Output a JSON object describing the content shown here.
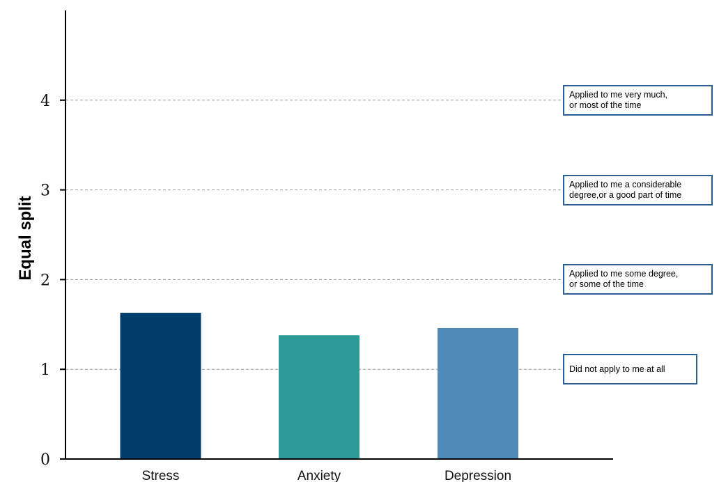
{
  "chart_data": {
    "type": "bar",
    "categories": [
      "Stress",
      "Anxiety",
      "Depression"
    ],
    "values": [
      1.63,
      1.38,
      1.46
    ],
    "colors": [
      "#003f6b",
      "#2a9a94",
      "#4f8ab8"
    ],
    "ylabel": "Equal split",
    "xlabel": "",
    "ylim": [
      0,
      5
    ],
    "yticks": [
      0,
      1,
      2,
      3,
      4
    ],
    "grid": "dashed horizontal at y = 1, 2, 3, 4",
    "annotations": [
      {
        "y": 4,
        "text": "Applied to me very much,\nor most of the time"
      },
      {
        "y": 3,
        "text": "Applied to me a considerable\ndegree,or a good part of time"
      },
      {
        "y": 2,
        "text": "Applied to me some degree,\nor some of the time"
      },
      {
        "y": 1,
        "text": "Did not apply to me at all"
      }
    ]
  }
}
